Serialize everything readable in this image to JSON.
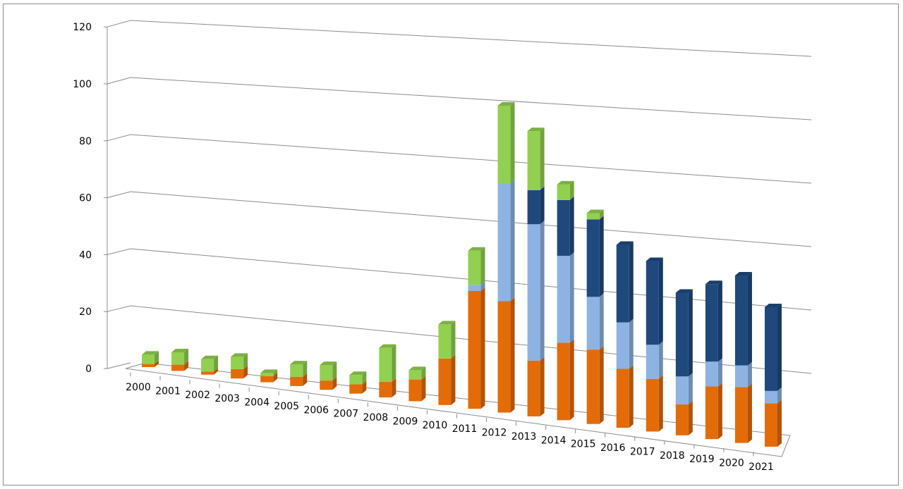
{
  "chart_data": {
    "type": "bar",
    "subtype": "stacked-3d",
    "title": "",
    "xlabel": "",
    "ylabel": "",
    "ylim": [
      0,
      120
    ],
    "yticks": [
      "0",
      "20",
      "40",
      "60",
      "80",
      "100",
      "120"
    ],
    "grid": true,
    "legend": "none",
    "categories": [
      "2000",
      "2001",
      "2002",
      "2003",
      "2004",
      "2005",
      "2006",
      "2007",
      "2008",
      "2009",
      "2010",
      "2011",
      "2012",
      "2013",
      "2014",
      "2015",
      "2016",
      "2017",
      "2018",
      "2019",
      "2020",
      "2021"
    ],
    "series": [
      {
        "color": "#E36C09",
        "values": [
          1,
          2,
          1,
          3,
          2,
          3,
          3,
          3,
          5,
          7,
          15,
          38,
          36,
          18,
          25,
          24,
          19,
          17,
          10,
          17,
          18,
          14
        ]
      },
      {
        "color": "#8DB3E2",
        "values": [
          0,
          0,
          0,
          0,
          0,
          0,
          0,
          0,
          0,
          0,
          0,
          2,
          38,
          44,
          28,
          17,
          15,
          11,
          9,
          8,
          7,
          4
        ]
      },
      {
        "color": "#1F497D",
        "values": [
          0,
          0,
          0,
          0,
          0,
          0,
          0,
          0,
          0,
          0,
          0,
          0,
          0,
          11,
          18,
          25,
          25,
          27,
          27,
          25,
          29,
          27
        ]
      },
      {
        "color": "#92D050",
        "values": [
          3,
          4,
          4,
          4,
          1,
          4,
          5,
          3,
          11,
          3,
          11,
          11,
          25,
          19,
          5,
          2,
          0,
          0,
          0,
          0,
          0,
          0
        ]
      }
    ]
  }
}
